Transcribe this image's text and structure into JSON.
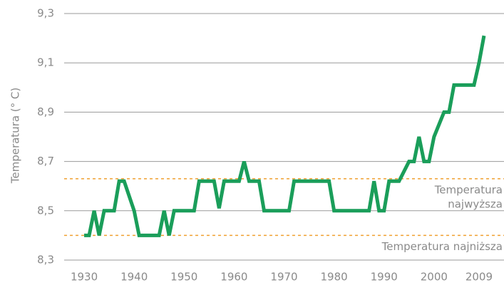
{
  "chart_data": {
    "type": "line",
    "ylabel": "Temperatura (° C)",
    "xlim": [
      1926,
      2014
    ],
    "xticks": [
      1930,
      1940,
      1950,
      1960,
      1970,
      1980,
      1990,
      2000,
      2009
    ],
    "ylim": [
      8.3,
      9.3
    ],
    "yticks": [
      {
        "value": 8.3,
        "label": "8,3"
      },
      {
        "value": 8.5,
        "label": "8,5"
      },
      {
        "value": 8.7,
        "label": "8,7"
      },
      {
        "value": 8.9,
        "label": "8,9"
      },
      {
        "value": 9.1,
        "label": "9,1"
      },
      {
        "value": 9.3,
        "label": "9,3"
      }
    ],
    "grid": true,
    "series": [
      {
        "color": "#1a9e5a",
        "x": [
          1930,
          1931,
          1932,
          1933,
          1934,
          1936,
          1937,
          1938,
          1940,
          1941,
          1945,
          1946,
          1947,
          1948,
          1952,
          1953,
          1956,
          1957,
          1958,
          1961,
          1962,
          1963,
          1965,
          1966,
          1971,
          1972,
          1979,
          1980,
          1987,
          1988,
          1989,
          1990,
          1991,
          1993,
          1995,
          1996,
          1997,
          1998,
          1999,
          2000,
          2002,
          2003,
          2004,
          2008,
          2009,
          2010
        ],
        "values": [
          8.4,
          8.4,
          8.5,
          8.4,
          8.5,
          8.5,
          8.62,
          8.62,
          8.5,
          8.4,
          8.4,
          8.5,
          8.4,
          8.5,
          8.5,
          8.62,
          8.62,
          8.51,
          8.62,
          8.62,
          8.7,
          8.62,
          8.62,
          8.5,
          8.5,
          8.62,
          8.62,
          8.5,
          8.5,
          8.62,
          8.5,
          8.5,
          8.62,
          8.62,
          8.7,
          8.7,
          8.8,
          8.7,
          8.7,
          8.8,
          8.9,
          8.9,
          9.01,
          9.01,
          9.1,
          9.21
        ]
      }
    ],
    "annotations": [
      {
        "y": 8.63,
        "color": "#f0a030",
        "text": [
          "Temperatura",
          "najwyższa"
        ]
      },
      {
        "y": 8.4,
        "color": "#f0a030",
        "text": [
          "Temperatura najniższa"
        ]
      }
    ]
  }
}
